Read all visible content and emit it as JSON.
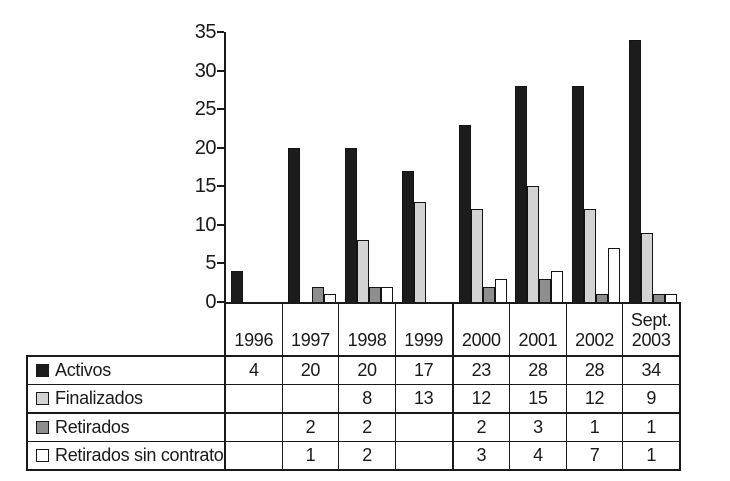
{
  "chart_data": {
    "type": "bar",
    "title": "",
    "xlabel": "",
    "ylabel": "",
    "categories": [
      "1996",
      "1997",
      "1998",
      "1999",
      "2000",
      "2001",
      "2002",
      "Sept. 2003"
    ],
    "display_categories": [
      "1996",
      "1997",
      "1998",
      "1999",
      "2000",
      "2001",
      "2002",
      "Sept.\n2003"
    ],
    "series": [
      {
        "name": "Activos",
        "color": "#1c1c1c",
        "values": [
          4,
          20,
          20,
          17,
          23,
          28,
          28,
          34
        ]
      },
      {
        "name": "Finalizados",
        "color": "#d3d3d3",
        "values": [
          null,
          null,
          8,
          13,
          12,
          15,
          12,
          9
        ]
      },
      {
        "name": "Retirados",
        "color": "#8e8e8e",
        "values": [
          null,
          2,
          2,
          null,
          2,
          3,
          1,
          1
        ]
      },
      {
        "name": "Retirados sin contrato",
        "color": "#ffffff",
        "values": [
          null,
          1,
          2,
          null,
          3,
          4,
          7,
          1
        ]
      }
    ],
    "ylim": [
      0,
      35
    ],
    "yticks": [
      "35",
      "30",
      "25",
      "20",
      "15",
      "10",
      "5",
      "0"
    ],
    "ytick_interval": 5,
    "grid": false,
    "legend_position": "table-left-column",
    "axis_color": "#1a1a1a"
  }
}
